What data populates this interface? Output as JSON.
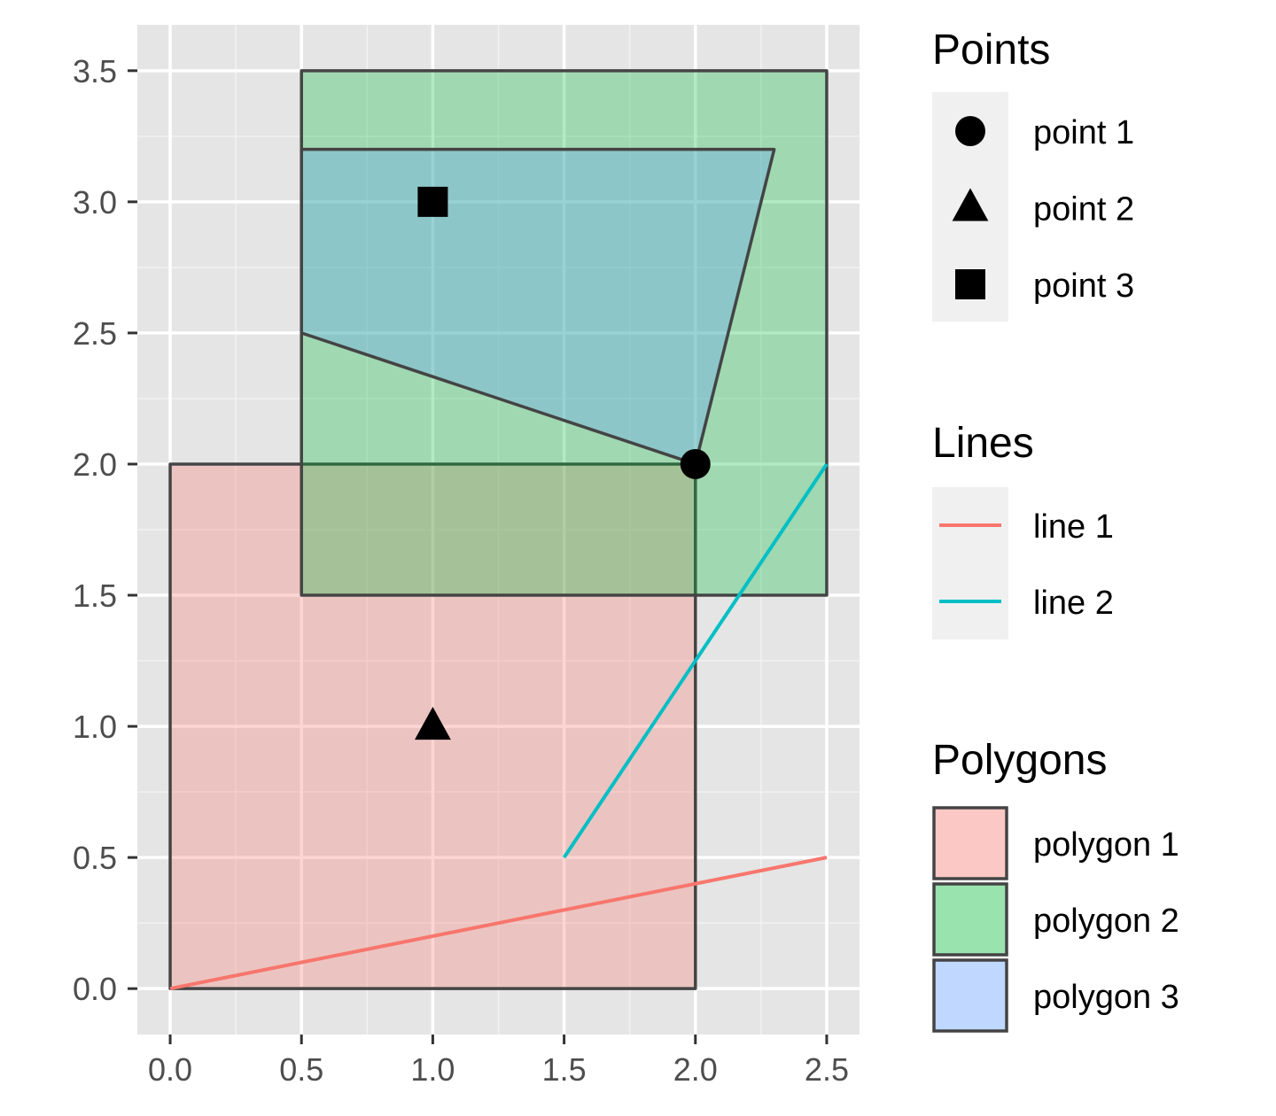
{
  "chart_data": {
    "type": "map",
    "xlim": [
      -0.125,
      2.625
    ],
    "ylim": [
      -0.175,
      3.675
    ],
    "x_ticks": [
      "0.0",
      "0.5",
      "1.0",
      "1.5",
      "2.0",
      "2.5"
    ],
    "x_tick_values": [
      0,
      0.5,
      1.0,
      1.5,
      2.0,
      2.5
    ],
    "y_ticks": [
      "0.0",
      "0.5",
      "1.0",
      "1.5",
      "2.0",
      "2.5",
      "3.0",
      "3.5"
    ],
    "y_tick_values": [
      0,
      0.5,
      1.0,
      1.5,
      2.0,
      2.5,
      3.0,
      3.5
    ],
    "grid": true,
    "legend_position": "right",
    "polygons": [
      {
        "name": "polygon 1",
        "fill": "#F8766D",
        "coords": [
          [
            0,
            0
          ],
          [
            2,
            0
          ],
          [
            2,
            2
          ],
          [
            0,
            2
          ]
        ]
      },
      {
        "name": "polygon 2",
        "fill": "#00BA38",
        "coords": [
          [
            0.5,
            1.5
          ],
          [
            2.5,
            1.5
          ],
          [
            2.5,
            3.5
          ],
          [
            0.5,
            3.5
          ]
        ]
      },
      {
        "name": "polygon 3",
        "fill": "#619CFF",
        "coords": [
          [
            0.5,
            2.5
          ],
          [
            2,
            2
          ],
          [
            2.3,
            3.2
          ],
          [
            0.5,
            3.2
          ]
        ]
      }
    ],
    "lines": [
      {
        "name": "line 1",
        "color": "#F8766D",
        "coords": [
          [
            0,
            0
          ],
          [
            2.5,
            0.5
          ]
        ]
      },
      {
        "name": "line 2",
        "color": "#00BFC4",
        "coords": [
          [
            1.5,
            0.5
          ],
          [
            2.5,
            2
          ]
        ]
      }
    ],
    "points": [
      {
        "name": "point 1",
        "shape": "circle",
        "x": 2,
        "y": 2
      },
      {
        "name": "point 2",
        "shape": "triangle",
        "x": 1,
        "y": 1
      },
      {
        "name": "point 3",
        "shape": "square",
        "x": 1,
        "y": 3
      }
    ],
    "legend": {
      "points_title": "Points",
      "lines_title": "Lines",
      "polygons_title": "Polygons"
    }
  }
}
